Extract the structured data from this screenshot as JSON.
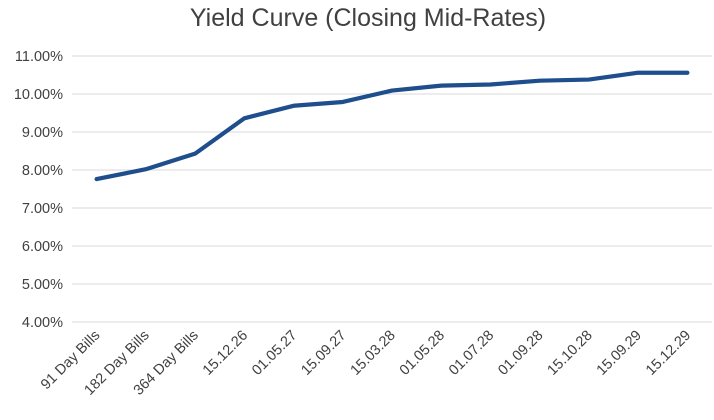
{
  "chart_data": {
    "type": "line",
    "title": "Yield Curve (Closing Mid-Rates)",
    "xlabel": "",
    "ylabel": "",
    "categories": [
      "91 Day Bills",
      "182 Day Bills",
      "364 Day Bills",
      "15.12.26",
      "01.05.27",
      "15.09.27",
      "15.03.28",
      "01.05.28",
      "01.07.28",
      "01.09.28",
      "15.10.28",
      "15.09.29",
      "15.12.29"
    ],
    "series": [
      {
        "values": [
          7.76,
          8.02,
          8.43,
          9.36,
          9.69,
          9.79,
          10.09,
          10.22,
          10.25,
          10.35,
          10.38,
          10.56,
          10.56
        ]
      }
    ],
    "ylim": [
      4.0,
      11.0
    ],
    "yticks": [
      4.0,
      5.0,
      6.0,
      7.0,
      8.0,
      9.0,
      10.0,
      11.0
    ],
    "ytick_labels": [
      "4.00%",
      "5.00%",
      "6.00%",
      "7.00%",
      "8.00%",
      "9.00%",
      "10.00%",
      "11.00%"
    ],
    "grid": true,
    "legend": "none",
    "colors": {
      "line": "#1f4e8c",
      "grid": "#d9d9d9",
      "text": "#404040"
    }
  }
}
